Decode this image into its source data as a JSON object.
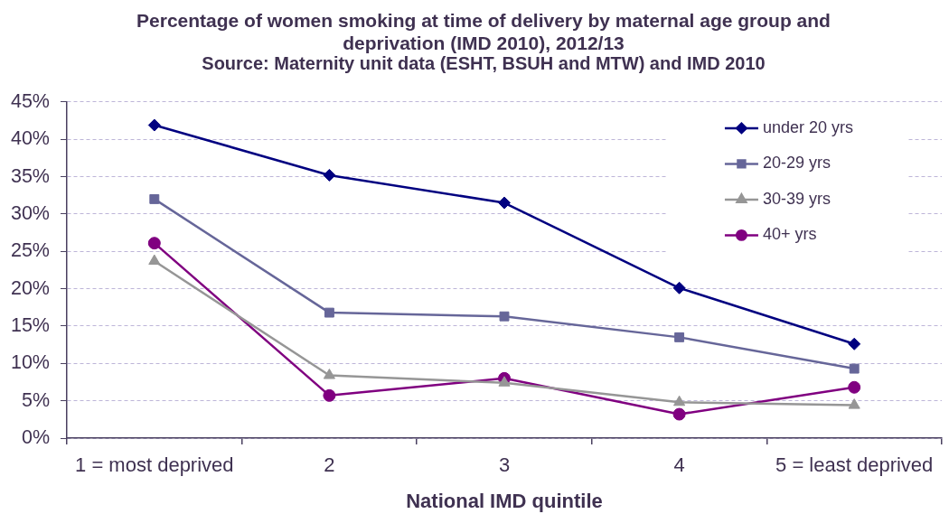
{
  "chart_data": {
    "type": "line",
    "title": "Percentage of women smoking at time of delivery by maternal age group and deprivation (IMD 2010), 2012/13",
    "subtitle": "Source: Maternity unit data (ESHT, BSUH and MTW) and IMD 2010",
    "xlabel": "National IMD quintile",
    "categories": [
      "1 = most deprived",
      "2",
      "3",
      "4",
      "5 = least deprived"
    ],
    "series": [
      {
        "name": "under 20 yrs",
        "color": "#000080",
        "marker": "diamond",
        "values": [
          41.9,
          35.2,
          31.5,
          20.1,
          12.6
        ]
      },
      {
        "name": "20-29 yrs",
        "color": "#666699",
        "marker": "square",
        "values": [
          32.0,
          16.8,
          16.3,
          13.5,
          9.3
        ]
      },
      {
        "name": "30-39 yrs",
        "color": "#969696",
        "marker": "triangle",
        "values": [
          23.7,
          8.4,
          7.4,
          4.8,
          4.4
        ]
      },
      {
        "name": "40+ yrs",
        "color": "#800080",
        "marker": "circle",
        "values": [
          26.1,
          5.7,
          8.0,
          3.2,
          6.8
        ]
      }
    ],
    "ylim": [
      0,
      45
    ],
    "yticks": [
      {
        "value": 0,
        "label": "0%"
      },
      {
        "value": 5,
        "label": "5%"
      },
      {
        "value": 10,
        "label": "10%"
      },
      {
        "value": 15,
        "label": "15%"
      },
      {
        "value": 20,
        "label": "20%"
      },
      {
        "value": 25,
        "label": "25%"
      },
      {
        "value": 30,
        "label": "30%"
      },
      {
        "value": 35,
        "label": "35%"
      },
      {
        "value": 40,
        "label": "40%"
      },
      {
        "value": 45,
        "label": "45%"
      }
    ],
    "grid": "y",
    "legend": "top right",
    "line_style": "solid"
  }
}
